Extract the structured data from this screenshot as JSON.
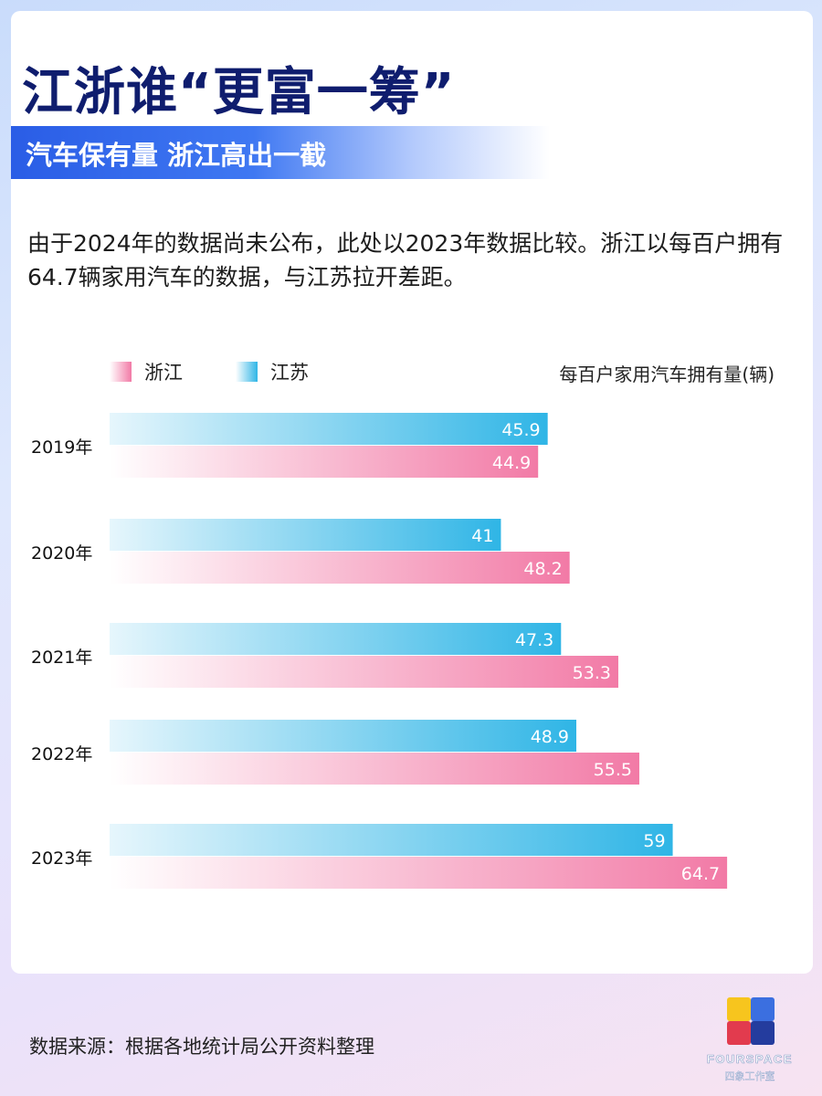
{
  "header": {
    "title": "江浙谁“更富一筹”",
    "subtitle": "汽车保有量 浙江高出一截"
  },
  "description": "由于2024年的数据尚未公布，此处以2023年数据比较。浙江以每百户拥有64.7辆家用汽车的数据，与江苏拉开差距。",
  "legend": {
    "zhejiang": "浙江",
    "jiangsu": "江苏",
    "unit": "每百户家用汽车拥有量(辆)"
  },
  "colors": {
    "zhejiang": "#f27aa6",
    "jiangsu": "#2fb5e6",
    "title": "#0f1d6e",
    "banner": "#2a5de6"
  },
  "chart_data": {
    "type": "bar",
    "orientation": "horizontal",
    "categories": [
      "2019年",
      "2020年",
      "2021年",
      "2022年",
      "2023年"
    ],
    "series": [
      {
        "name": "江苏",
        "values": [
          45.9,
          41,
          47.3,
          48.9,
          59
        ]
      },
      {
        "name": "浙江",
        "values": [
          44.9,
          48.2,
          53.3,
          55.5,
          64.7
        ]
      }
    ],
    "legend_position": "top-left",
    "grid": false
  },
  "footer": {
    "source": "数据来源：根据各地统计局公开资料整理"
  },
  "logo": {
    "text": "FOURSPACE",
    "subtext": "四象工作室"
  }
}
